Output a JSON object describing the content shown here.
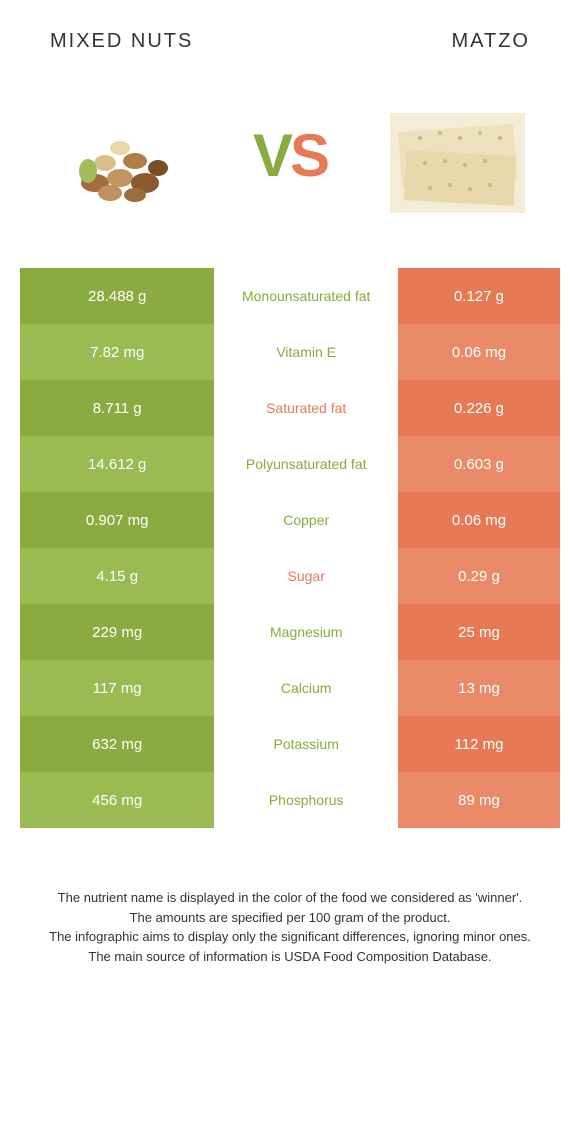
{
  "colors": {
    "green_dark": "#8aab3f",
    "green_light": "#9abb52",
    "orange_dark": "#e77a56",
    "orange_light": "#ea8a68",
    "white": "#ffffff",
    "text_gray": "#333333"
  },
  "header": {
    "left_title": "Mixed nuts",
    "right_title": "Matzo"
  },
  "vs": {
    "v": "V",
    "s": "S"
  },
  "rows": [
    {
      "left": "28.488 g",
      "label": "Monounsaturated fat",
      "right": "0.127 g",
      "winner": "left"
    },
    {
      "left": "7.82 mg",
      "label": "Vitamin E",
      "right": "0.06 mg",
      "winner": "left"
    },
    {
      "left": "8.711 g",
      "label": "Saturated fat",
      "right": "0.226 g",
      "winner": "right"
    },
    {
      "left": "14.612 g",
      "label": "Polyunsaturated fat",
      "right": "0.603 g",
      "winner": "left"
    },
    {
      "left": "0.907 mg",
      "label": "Copper",
      "right": "0.06 mg",
      "winner": "left"
    },
    {
      "left": "4.15 g",
      "label": "Sugar",
      "right": "0.29 g",
      "winner": "right"
    },
    {
      "left": "229 mg",
      "label": "Magnesium",
      "right": "25 mg",
      "winner": "left"
    },
    {
      "left": "117 mg",
      "label": "Calcium",
      "right": "13 mg",
      "winner": "left"
    },
    {
      "left": "632 mg",
      "label": "Potassium",
      "right": "112 mg",
      "winner": "left"
    },
    {
      "left": "456 mg",
      "label": "Phosphorus",
      "right": "89 mg",
      "winner": "left"
    }
  ],
  "footer": {
    "line1": "The nutrient name is displayed in the color of the food we considered as 'winner'.",
    "line2": "The amounts are specified per 100 gram of the product.",
    "line3": "The infographic aims to display only the significant differences, ignoring minor ones.",
    "line4": "The main source of information is USDA Food Composition Database."
  }
}
